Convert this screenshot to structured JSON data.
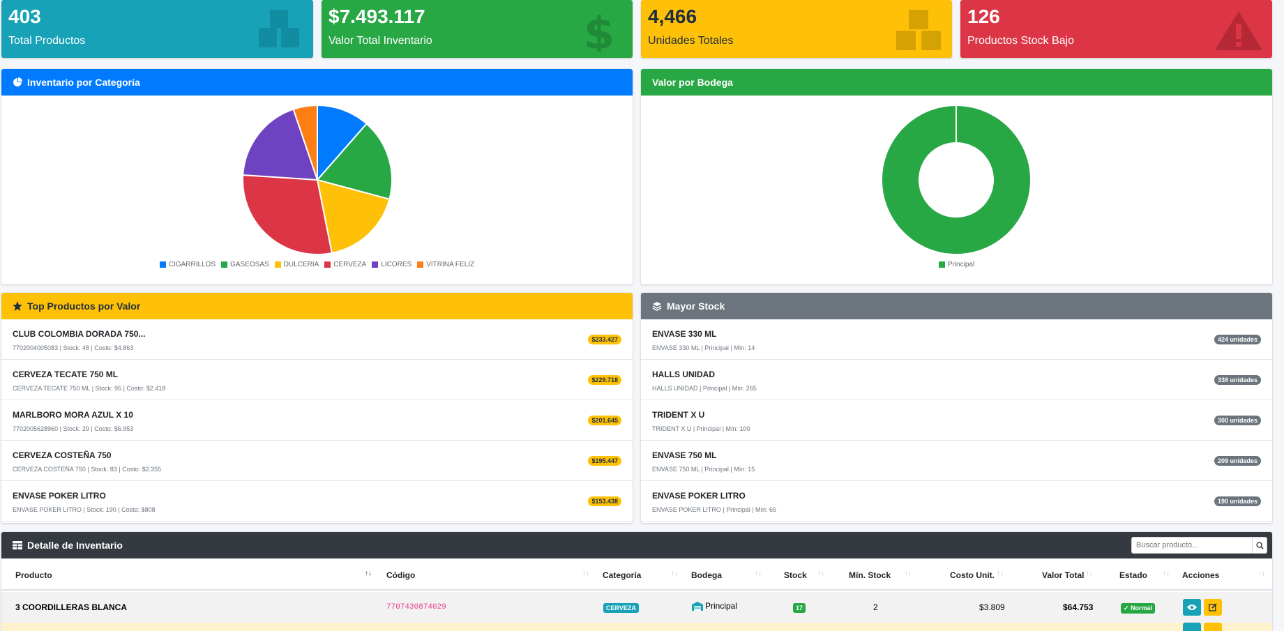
{
  "stats": [
    {
      "value": "403",
      "label": "Total Productos",
      "color": "#17a2b8",
      "icon": "cubes-icon"
    },
    {
      "value": "$7.493.117",
      "label": "Valor Total Inventario",
      "color": "#28a745",
      "icon": "dollar-icon"
    },
    {
      "value": "4,466",
      "label": "Unidades Totales",
      "color": "#ffc107",
      "icon": "boxes-icon"
    },
    {
      "value": "126",
      "label": "Productos Stock Bajo",
      "color": "#dc3545",
      "icon": "warning-icon"
    }
  ],
  "category_chart": {
    "title": "Inventario por Categoría",
    "chart_data": {
      "type": "pie",
      "categories": [
        "CIGARRILLOS",
        "GASEOSAS",
        "DULCERIA",
        "CERVEZA",
        "LICORES",
        "VITRINA FELIZ"
      ],
      "values": [
        11,
        17,
        17,
        28,
        18,
        5
      ],
      "colors": [
        "#007bff",
        "#28a745",
        "#ffc107",
        "#dc3545",
        "#6f42c1",
        "#fd7e14"
      ]
    }
  },
  "warehouse_chart": {
    "title": "Valor por Bodega",
    "chart_data": {
      "type": "pie",
      "categories": [
        "Principal"
      ],
      "values": [
        100
      ],
      "colors": [
        "#28a745"
      ]
    }
  },
  "top_products": {
    "title": "Top Productos por Valor",
    "items": [
      {
        "name": "CLUB COLOMBIA DORADA 750...",
        "sub": "7702004005083 | Stock: 48 | Costo: $4.863",
        "badge": "$233.427"
      },
      {
        "name": "CERVEZA TECATE 750 ML",
        "sub": "CERVEZA TECATE 750 ML | Stock: 95 | Costo: $2.418",
        "badge": "$229.718"
      },
      {
        "name": "MARLBORO MORA AZUL X 10",
        "sub": "7702005628960 | Stock: 29 | Costo: $6.953",
        "badge": "$201.645"
      },
      {
        "name": "CERVEZA COSTEÑA 750",
        "sub": "CERVEZA COSTEÑA 750 | Stock: 83 | Costo: $2.355",
        "badge": "$195.447"
      },
      {
        "name": "ENVASE POKER LITRO",
        "sub": "ENVASE POKER LITRO | Stock: 190 | Costo: $808",
        "badge": "$153.438"
      }
    ]
  },
  "most_stock": {
    "title": "Mayor Stock",
    "items": [
      {
        "name": "ENVASE 330 ML",
        "sub": "ENVASE 330 ML | Principal | Mín: 14",
        "badge": "424 unidades"
      },
      {
        "name": "HALLS UNIDAD",
        "sub": "HALLS UNIDAD | Principal | Mín: 265",
        "badge": "338 unidades"
      },
      {
        "name": "TRIDENT X U",
        "sub": "TRIDENT X U | Principal | Mín: 100",
        "badge": "300 unidades"
      },
      {
        "name": "ENVASE 750 ML",
        "sub": "ENVASE 750 ML | Principal | Mín: 15",
        "badge": "209 unidades"
      },
      {
        "name": "ENVASE POKER LITRO",
        "sub": "ENVASE POKER LITRO | Principal | Mín: 65",
        "badge": "190 unidades"
      }
    ]
  },
  "detail": {
    "title": "Detalle de Inventario",
    "search_placeholder": "Buscar producto...",
    "columns": {
      "producto": "Producto",
      "codigo": "Código",
      "categoria": "Categoría",
      "bodega": "Bodega",
      "stock": "Stock",
      "min": "Mín. Stock",
      "costo": "Costo Unit.",
      "valor": "Valor Total",
      "estado": "Estado",
      "acciones": "Acciones"
    },
    "row": {
      "producto": "3 COORDILLERAS BLANCA",
      "codigo": "7707430874029",
      "categoria": "CERVEZA",
      "bodega": "Principal",
      "stock": "17",
      "min": "2",
      "costo": "$3.809",
      "valor": "$64.753",
      "estado": "Normal"
    }
  }
}
